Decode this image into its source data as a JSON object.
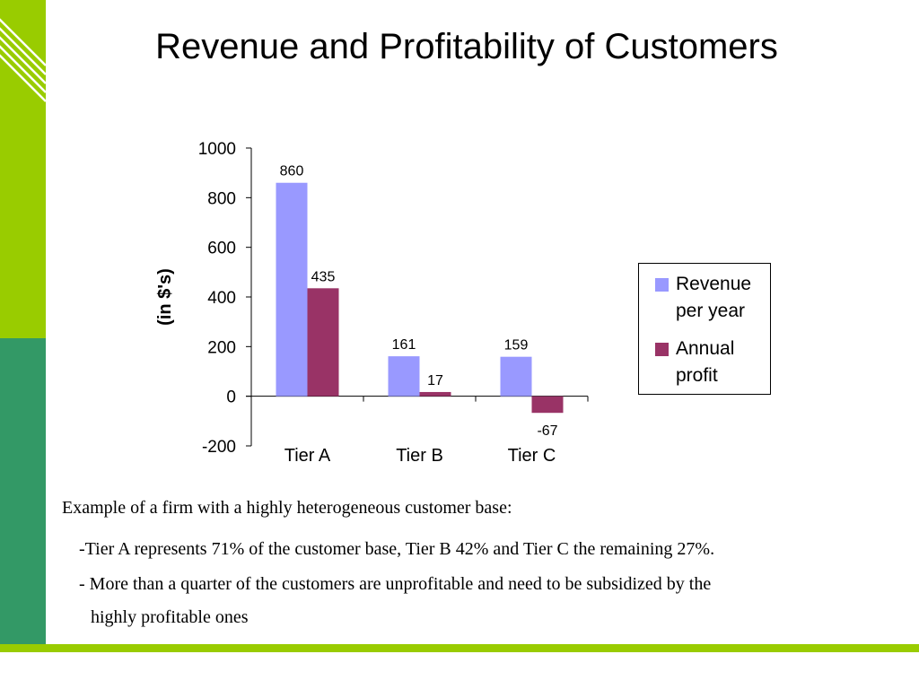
{
  "slide": {
    "title": "Revenue and Profitability of Customers"
  },
  "chart_data": {
    "type": "bar",
    "categories": [
      "Tier A",
      "Tier B",
      "Tier C"
    ],
    "series": [
      {
        "name": "Revenue per year",
        "values": [
          860,
          161,
          159
        ],
        "color": "#9999ff"
      },
      {
        "name": "Annual profit",
        "values": [
          435,
          17,
          -67
        ],
        "color": "#993366"
      }
    ],
    "ylabel": "(in $'s)",
    "ylim": [
      -200,
      1000
    ],
    "yticks": [
      1000,
      800,
      600,
      400,
      200,
      0,
      -200
    ],
    "grid": false,
    "legend_position": "right"
  },
  "legend": {
    "revenue_line1": "Revenue",
    "revenue_line2": "per year",
    "profit_line1": "Annual",
    "profit_line2": "profit"
  },
  "text": {
    "caption": "Example of a firm with a highly heterogeneous customer base:",
    "bullet1": "-Tier A represents 71% of the customer base, Tier B 42% and Tier C the remaining 27%.",
    "bullet2_line1": "- More than a quarter of the customers are unprofitable and need to be subsidized by the",
    "bullet2_line2": "highly profitable ones"
  },
  "colors": {
    "accent_green": "#99cc00",
    "accent_dark_green": "#339966"
  }
}
